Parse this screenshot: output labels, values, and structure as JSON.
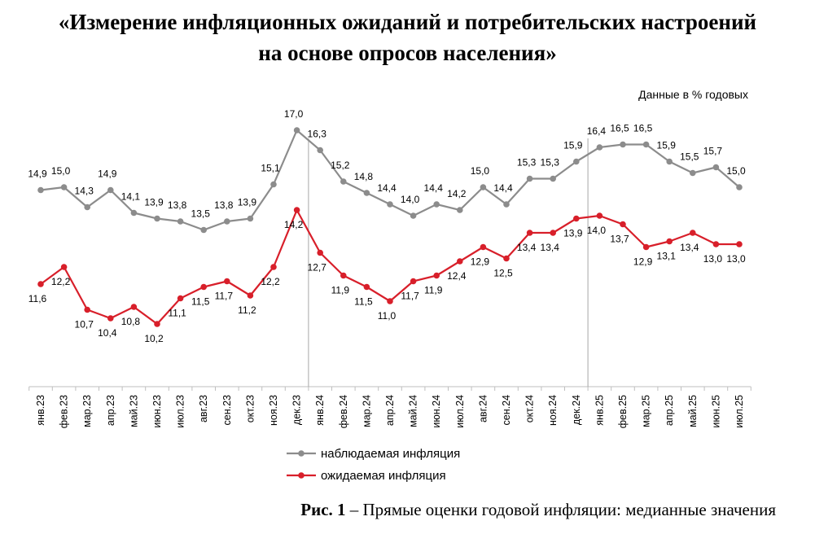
{
  "title_line1": "«Измерение инфляционных ожиданий и потребительских настроений",
  "title_line2": "на основе опросов населения»",
  "units_note": "Данные в % годовых",
  "caption_bold": "Рис. 1",
  "caption_rest": " – Прямые оценки годовой инфляции: медианные значения",
  "chart_data": {
    "type": "line",
    "categories": [
      "янв.23",
      "фев.23",
      "мар.23",
      "апр.23",
      "май.23",
      "июн.23",
      "июл.23",
      "авг.23",
      "сен.23",
      "окт.23",
      "ноя.23",
      "дек.23",
      "янв.24",
      "фев.24",
      "мар.24",
      "апр.24",
      "май.24",
      "июн.24",
      "июл.24",
      "авг.24",
      "сен.24",
      "окт.24",
      "ноя.24",
      "дек.24",
      "янв.25",
      "фев.25",
      "мар.25",
      "апр.25",
      "май.25",
      "июн.25",
      "июл.25"
    ],
    "ylim": [
      8.0,
      18.0
    ],
    "grid": false,
    "series": [
      {
        "name": "наблюдаемая инфляция",
        "color": "#8c8c8c",
        "values": [
          14.9,
          15.0,
          14.3,
          14.9,
          14.1,
          13.9,
          13.8,
          13.5,
          13.8,
          13.9,
          15.1,
          17.0,
          16.3,
          15.2,
          14.8,
          14.4,
          14.0,
          14.4,
          14.2,
          15.0,
          14.4,
          15.3,
          15.3,
          15.9,
          16.4,
          16.5,
          16.5,
          15.9,
          15.5,
          15.7,
          15.0
        ],
        "labels": [
          "14,9",
          "15,0",
          "14,3",
          "14,9",
          "14,1",
          "13,9",
          "13,8",
          "13,5",
          "13,8",
          "13,9",
          "15,1",
          "17,0",
          "16,3",
          "15,2",
          "14,8",
          "14,4",
          "14,0",
          "14,4",
          "14,2",
          "15,0",
          "14,4",
          "15,3",
          "15,3",
          "15,9",
          "16,4",
          "16,5",
          "16,5",
          "15,9",
          "15,5",
          "15,7",
          "15,0"
        ]
      },
      {
        "name": "ожидаемая инфляция",
        "color": "#d81f2a",
        "values": [
          11.6,
          12.2,
          10.7,
          10.4,
          10.8,
          10.2,
          11.1,
          11.5,
          11.7,
          11.2,
          12.2,
          14.2,
          12.7,
          11.9,
          11.5,
          11.0,
          11.7,
          11.9,
          12.4,
          12.9,
          12.5,
          13.4,
          13.4,
          13.9,
          14.0,
          13.7,
          12.9,
          13.1,
          13.4,
          13.0,
          13.0
        ],
        "labels": [
          "11,6",
          "12,2",
          "10,7",
          "10,4",
          "10,8",
          "10,2",
          "11,1",
          "11,5",
          "11,7",
          "11,2",
          "12,2",
          "14,2",
          "12,7",
          "11,9",
          "11,5",
          "11,0",
          "11,7",
          "11,9",
          "12,4",
          "12,9",
          "12,5",
          "13,4",
          "13,4",
          "13,9",
          "14,0",
          "13,7",
          "12,9",
          "13,1",
          "13,4",
          "13,0",
          "13,0"
        ]
      }
    ]
  }
}
